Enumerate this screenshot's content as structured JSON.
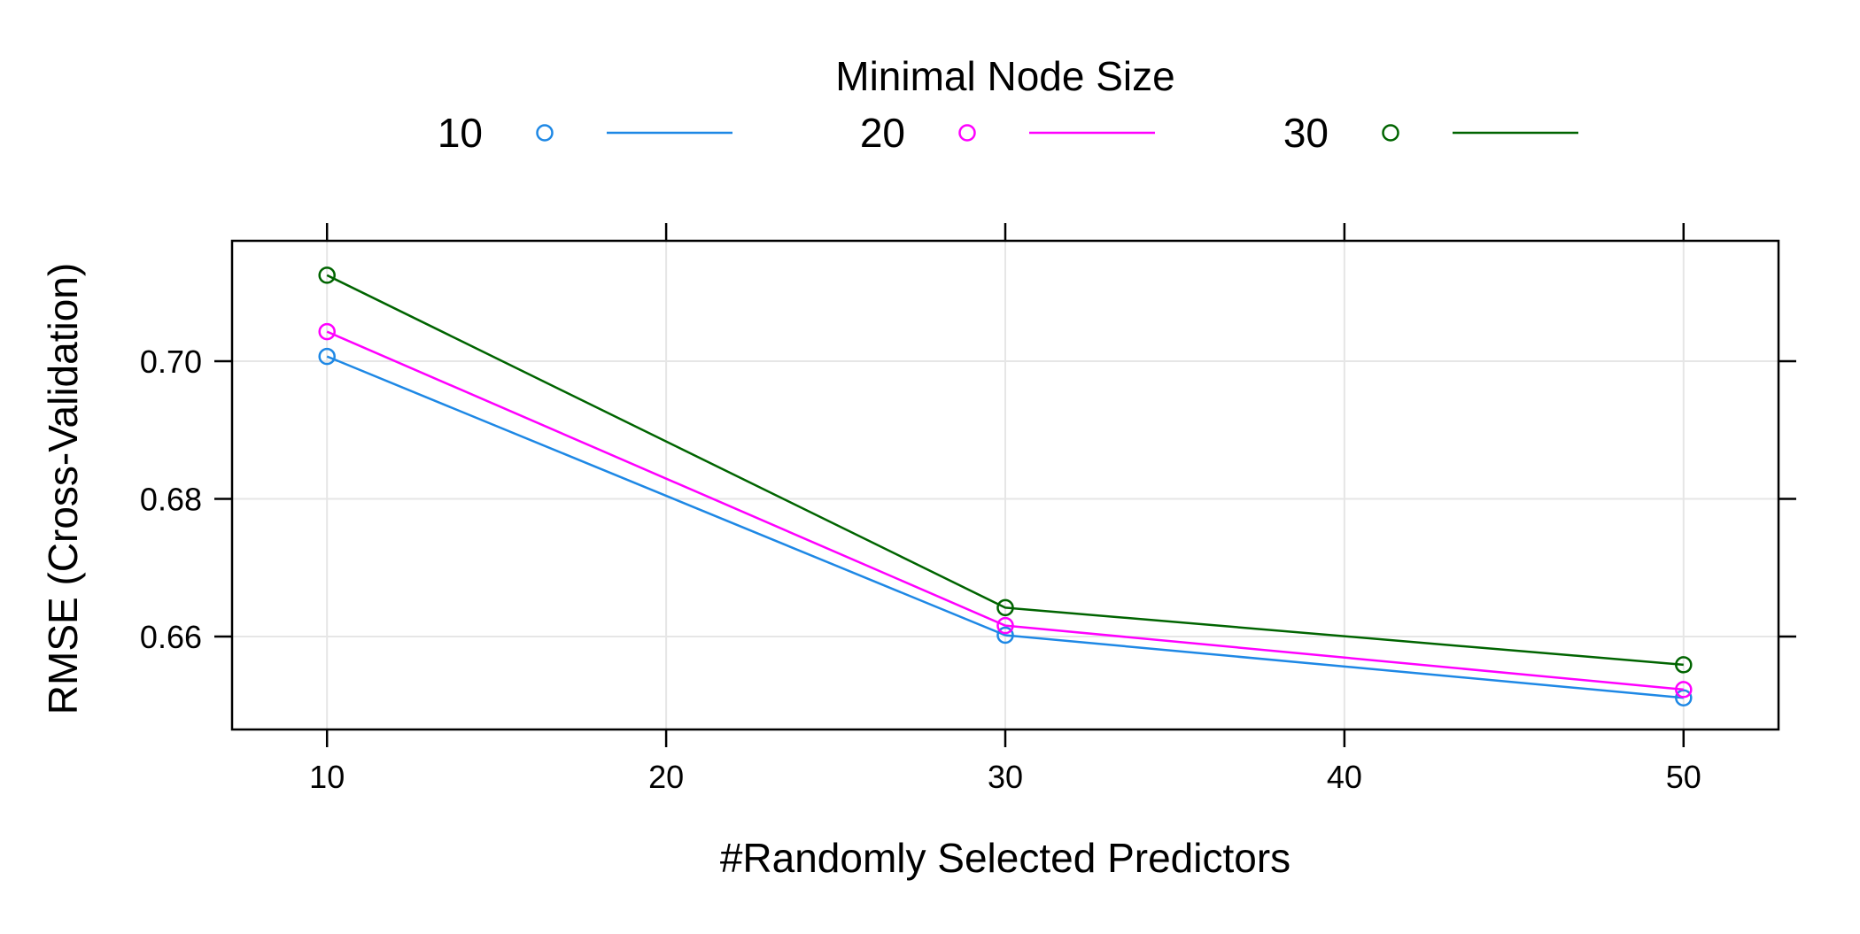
{
  "chart_data": {
    "type": "line",
    "title": "",
    "xlabel": "#Randomly Selected Predictors",
    "ylabel": "RMSE (Cross-Validation)",
    "legend": {
      "title": "Minimal Node Size",
      "placement": "top"
    },
    "x": [
      10,
      30,
      50
    ],
    "xlim": [
      7.2,
      52.8
    ],
    "ylim": [
      0.6465,
      0.7175
    ],
    "xticks": [
      10,
      20,
      30,
      40,
      50
    ],
    "yticks": [
      0.66,
      0.68,
      0.7
    ],
    "xtick_labels": [
      "10",
      "20",
      "30",
      "40",
      "50"
    ],
    "ytick_labels": [
      "0.66",
      "0.68",
      "0.70"
    ],
    "grid": true,
    "markers": "open-circle",
    "series": [
      {
        "name": "10",
        "color": "#1E88E5",
        "values": [
          0.7007,
          0.6602,
          0.6511
        ]
      },
      {
        "name": "20",
        "color": "#FF00FF",
        "values": [
          0.7043,
          0.6616,
          0.6523
        ]
      },
      {
        "name": "30",
        "color": "#006400",
        "values": [
          0.7125,
          0.6642,
          0.6559
        ]
      }
    ]
  }
}
